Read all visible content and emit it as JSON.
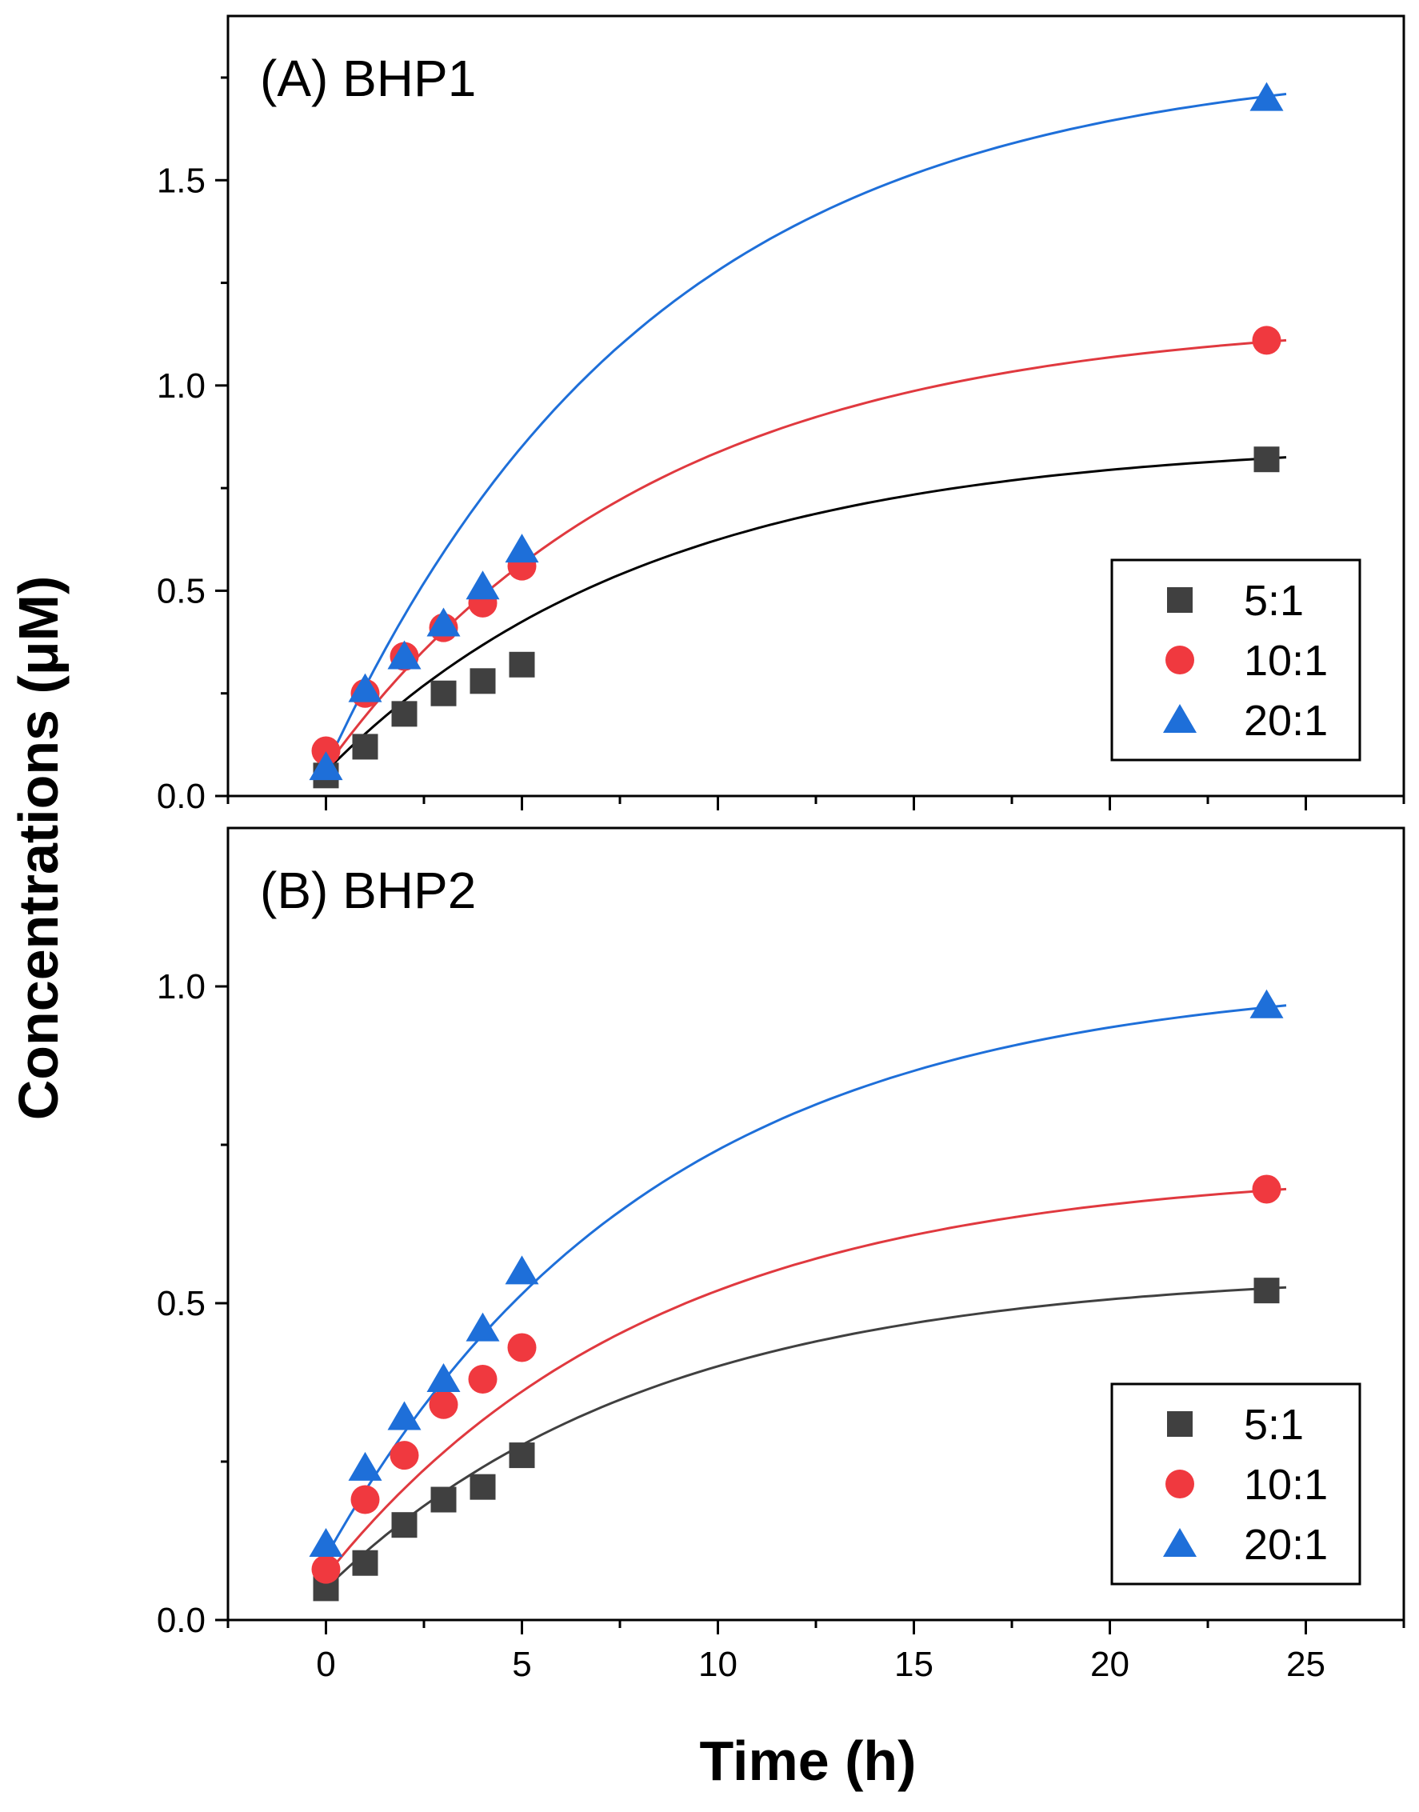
{
  "figure": {
    "ylabel": "Concentrations (μM)",
    "xlabel": "Time (h)"
  },
  "chart_data": [
    {
      "type": "scatter",
      "panel": "A",
      "title": "(A) BHP1",
      "xlabel": "Time (h)",
      "ylabel": "Concentrations (μM)",
      "xlim": [
        -2.5,
        27.5
      ],
      "ylim": [
        0,
        1.9
      ],
      "xticks": [
        0,
        5,
        10,
        15,
        20,
        25
      ],
      "yticks": [
        0.0,
        0.5,
        1.0,
        1.5
      ],
      "ytick_labels": [
        "0.0",
        "0.5",
        "1.0",
        "1.5"
      ],
      "legend_position": "bottom-right",
      "series": [
        {
          "name": "5:1",
          "marker": "square",
          "color": "#404040",
          "fit_color": "#000000",
          "x": [
            0,
            1,
            2,
            3,
            4,
            5,
            24
          ],
          "y": [
            0.05,
            0.12,
            0.2,
            0.25,
            0.28,
            0.32,
            0.82
          ],
          "fit_x": [
            0,
            24.5
          ],
          "fit_y": [
            0.06,
            0.825
          ]
        },
        {
          "name": "10:1",
          "marker": "circle",
          "color": "#f0393f",
          "fit_color": "#e0393f",
          "x": [
            0,
            1,
            2,
            3,
            4,
            5,
            24
          ],
          "y": [
            0.11,
            0.25,
            0.34,
            0.41,
            0.47,
            0.56,
            1.11
          ],
          "fit_x": [
            0,
            24.5
          ],
          "fit_y": [
            0.07,
            1.11
          ]
        },
        {
          "name": "20:1",
          "marker": "triangle",
          "color": "#1e6fd9",
          "fit_color": "#1e6fd9",
          "x": [
            0,
            1,
            2,
            3,
            4,
            5,
            24
          ],
          "y": [
            0.07,
            0.26,
            0.34,
            0.42,
            0.51,
            0.6,
            1.7
          ],
          "fit_x": [
            0,
            24.5
          ],
          "fit_y": [
            0.07,
            1.71
          ]
        }
      ]
    },
    {
      "type": "scatter",
      "panel": "B",
      "title": "(B) BHP2",
      "xlabel": "Time (h)",
      "ylabel": "Concentrations (μM)",
      "xlim": [
        -2.5,
        27.5
      ],
      "ylim": [
        0,
        1.25
      ],
      "xticks": [
        0,
        5,
        10,
        15,
        20,
        25
      ],
      "xtick_labels": [
        "0",
        "5",
        "10",
        "15",
        "20",
        "25"
      ],
      "yticks": [
        0.0,
        0.5,
        1.0
      ],
      "ytick_labels": [
        "0.0",
        "0.5",
        "1.0"
      ],
      "legend_position": "bottom-right",
      "series": [
        {
          "name": "5:1",
          "marker": "square",
          "color": "#404040",
          "fit_color": "#404040",
          "x": [
            0,
            1,
            2,
            3,
            4,
            5,
            24
          ],
          "y": [
            0.05,
            0.09,
            0.15,
            0.19,
            0.21,
            0.26,
            0.52
          ],
          "fit_x": [
            0,
            24.5
          ],
          "fit_y": [
            0.05,
            0.525
          ]
        },
        {
          "name": "10:1",
          "marker": "circle",
          "color": "#f0393f",
          "fit_color": "#e0393f",
          "x": [
            0,
            1,
            2,
            3,
            4,
            5,
            24
          ],
          "y": [
            0.08,
            0.19,
            0.26,
            0.34,
            0.38,
            0.43,
            0.68
          ],
          "fit_x": [
            0,
            24.5
          ],
          "fit_y": [
            0.07,
            0.68
          ]
        },
        {
          "name": "20:1",
          "marker": "triangle",
          "color": "#1e6fd9",
          "fit_color": "#1e6fd9",
          "x": [
            0,
            1,
            2,
            3,
            4,
            5,
            24
          ],
          "y": [
            0.12,
            0.24,
            0.32,
            0.38,
            0.46,
            0.55,
            0.97
          ],
          "fit_x": [
            0,
            24.5
          ],
          "fit_y": [
            0.1,
            0.97
          ]
        }
      ]
    }
  ]
}
